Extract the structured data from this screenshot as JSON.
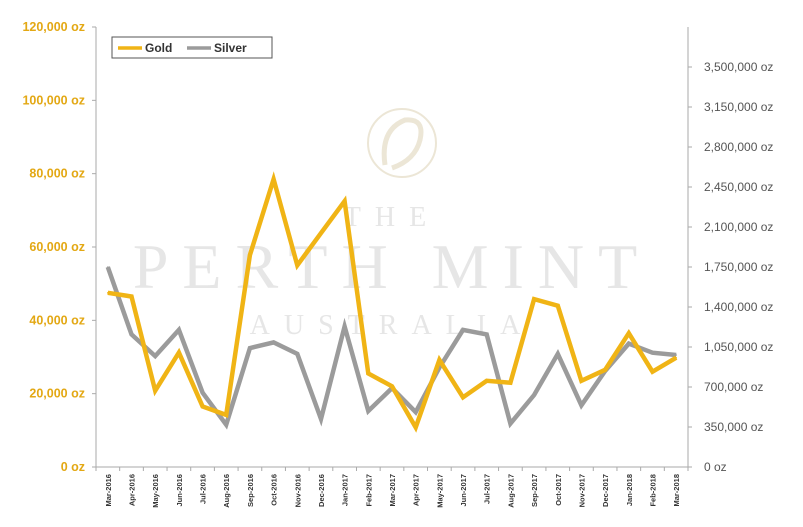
{
  "colors": {
    "gold": "#f0b415",
    "silver": "#9b9b9b",
    "left_axis_text": "#e3a814",
    "right_axis_text": "#555555",
    "axis_line": "#aaaaaa",
    "watermark": "#e6e6e6"
  },
  "legend": {
    "gold_label": "Gold",
    "silver_label": "Silver"
  },
  "watermark": {
    "line1": "THE",
    "line2": "PERTH MINT",
    "line3": "AUSTRALIA"
  },
  "chart_data": {
    "type": "line",
    "categories": [
      "Mar-2016",
      "Apr-2016",
      "May-2016",
      "Jun-2016",
      "Jul-2016",
      "Aug-2016",
      "Sep-2016",
      "Oct-2016",
      "Nov-2016",
      "Dec-2016",
      "Jan-2017",
      "Feb-2017",
      "Mar-2017",
      "Apr-2017",
      "May-2017",
      "Jun-2017",
      "Jul-2017",
      "Aug-2017",
      "Sep-2017",
      "Oct-2017",
      "Nov-2017",
      "Dec-2017",
      "Jan-2018",
      "Feb-2018",
      "Mar-2018"
    ],
    "left_axis": {
      "ylim": [
        0,
        120000
      ],
      "ticks": [
        "0 oz",
        "20,000 oz",
        "40,000 oz",
        "60,000 oz",
        "80,000 oz",
        "100,000 oz",
        "120,000 oz"
      ]
    },
    "right_axis": {
      "ylim": [
        0,
        3850000
      ],
      "ticks": [
        "0 oz",
        "350,000 oz",
        "700,000 oz",
        "1,050,000 oz",
        "1,400,000 oz",
        "1,750,000 oz",
        "2,100,000 oz",
        "2,450,000 oz",
        "2,800,000 oz",
        "3,150,000 oz",
        "3,500,000 oz"
      ]
    },
    "series": [
      {
        "name": "Gold",
        "axis": "left",
        "values": [
          47500,
          46500,
          20800,
          31200,
          16500,
          14200,
          57800,
          78500,
          55000,
          63800,
          72500,
          25500,
          22000,
          10800,
          29200,
          19000,
          23500,
          23000,
          45800,
          44000,
          23500,
          26500,
          36500,
          26000,
          29800
        ]
      },
      {
        "name": "Silver",
        "axis": "right",
        "values": [
          1750000,
          1160000,
          970000,
          1200000,
          650000,
          370000,
          1040000,
          1090000,
          990000,
          420000,
          1230000,
          490000,
          690000,
          480000,
          870000,
          1200000,
          1160000,
          380000,
          630000,
          990000,
          540000,
          840000,
          1080000,
          1000000,
          980000
        ]
      }
    ],
    "grid": false,
    "legend_position": "top-left"
  }
}
